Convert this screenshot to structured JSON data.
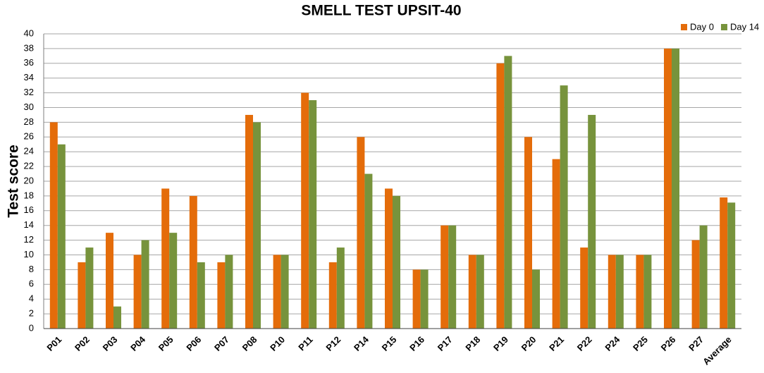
{
  "chart_data": {
    "type": "bar",
    "title": "SMELL TEST UPSIT-40",
    "y_label": "Test score",
    "categories": [
      "P01",
      "P02",
      "P03",
      "P04",
      "P05",
      "P06",
      "P07",
      "P08",
      "P10",
      "P11",
      "P12",
      "P14",
      "P15",
      "P16",
      "P17",
      "P18",
      "P19",
      "P20",
      "P21",
      "P22",
      "P24",
      "P25",
      "P26",
      "P27",
      "Average"
    ],
    "series": [
      {
        "name": "Day 0",
        "color": "#e46c0a",
        "values": [
          28,
          9,
          13,
          10,
          19,
          18,
          9,
          29,
          10,
          32,
          9,
          26,
          19,
          8,
          14,
          10,
          36,
          26,
          23,
          11,
          10,
          10,
          38,
          12,
          17.8
        ]
      },
      {
        "name": "Day 14",
        "color": "#77933c",
        "values": [
          25,
          11,
          3,
          12,
          13,
          9,
          10,
          28,
          10,
          31,
          11,
          21,
          18,
          8,
          14,
          10,
          37,
          8,
          33,
          29,
          10,
          10,
          38,
          14,
          17.1
        ]
      }
    ],
    "ylim": [
      0,
      40
    ],
    "yticks": [
      0,
      2,
      4,
      6,
      8,
      10,
      12,
      14,
      16,
      18,
      20,
      22,
      24,
      26,
      28,
      30,
      32,
      34,
      36,
      38,
      40
    ],
    "grid": true,
    "legend": "top-right"
  }
}
